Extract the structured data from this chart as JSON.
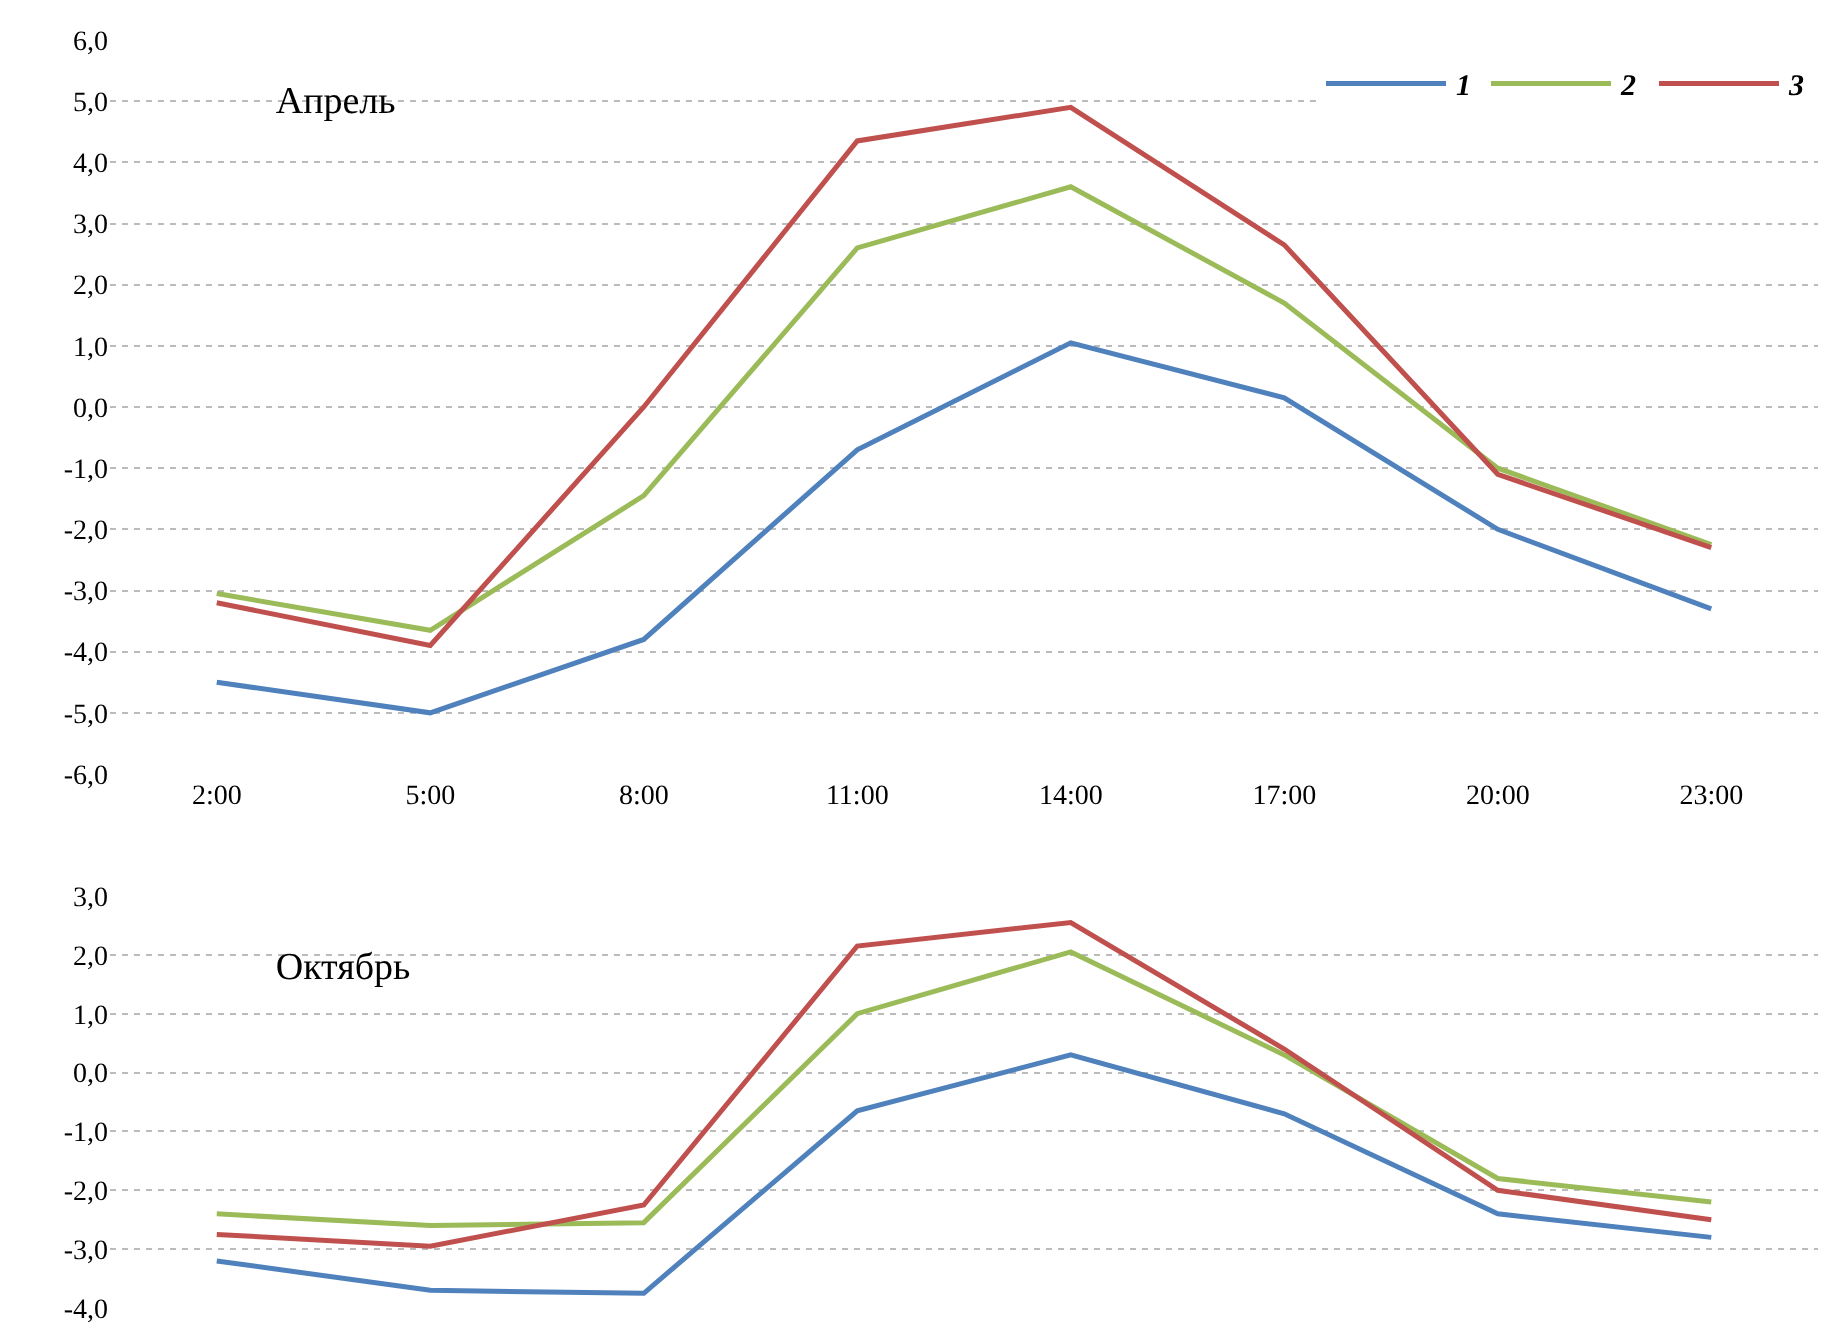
{
  "chart_data": [
    {
      "type": "line",
      "title": "Апрель",
      "categories": [
        "2:00",
        "5:00",
        "8:00",
        "11:00",
        "14:00",
        "17:00",
        "20:00",
        "23:00"
      ],
      "series": [
        {
          "name": "1",
          "color": "#4f81bd",
          "values": [
            -4.5,
            -5.0,
            -3.8,
            -0.7,
            1.05,
            0.15,
            -2.0,
            -3.3
          ]
        },
        {
          "name": "2",
          "color": "#9bbb59",
          "values": [
            -3.05,
            -3.65,
            -1.45,
            2.6,
            3.6,
            1.7,
            -1.0,
            -2.25
          ]
        },
        {
          "name": "3",
          "color": "#c0504d",
          "values": [
            -3.2,
            -3.9,
            0.0,
            4.35,
            4.9,
            2.65,
            -1.1,
            -2.3
          ]
        }
      ],
      "ylim": [
        -6,
        6
      ],
      "yticks": [
        {
          "value": -6,
          "label": "-6,0"
        },
        {
          "value": -5,
          "label": "-5,0"
        },
        {
          "value": -4,
          "label": "-4,0"
        },
        {
          "value": -3,
          "label": "-3,0"
        },
        {
          "value": -2,
          "label": "-2,0"
        },
        {
          "value": -1,
          "label": "-1,0"
        },
        {
          "value": 0,
          "label": "0,0"
        },
        {
          "value": 1,
          "label": "1,0"
        },
        {
          "value": 2,
          "label": "2,0"
        },
        {
          "value": 3,
          "label": "3,0"
        },
        {
          "value": 4,
          "label": "4,0"
        },
        {
          "value": 5,
          "label": "5,0"
        },
        {
          "value": 6,
          "label": "6,0"
        }
      ],
      "grid": "y",
      "legend": "top right",
      "line_style": "solid",
      "marker": "none"
    },
    {
      "type": "line",
      "title": "Октябрь",
      "categories": [
        null,
        null,
        null,
        null,
        null,
        null,
        null,
        null
      ],
      "series": [
        {
          "color": "#4f81bd",
          "values": [
            -3.2,
            -3.7,
            -3.75,
            -0.65,
            0.3,
            -0.7,
            -2.4,
            -2.8
          ]
        },
        {
          "color": "#9bbb59",
          "values": [
            -2.4,
            -2.6,
            -2.55,
            1.0,
            2.05,
            0.3,
            -1.8,
            -2.2
          ]
        },
        {
          "color": "#c0504d",
          "values": [
            -2.75,
            -2.95,
            -2.25,
            2.15,
            2.55,
            0.4,
            -2.0,
            -2.5
          ]
        }
      ],
      "ylim": [
        -4,
        3
      ],
      "yticks": [
        {
          "value": -4,
          "label": "-4,0"
        },
        {
          "value": -3,
          "label": "-3,0"
        },
        {
          "value": -2,
          "label": "-2,0"
        },
        {
          "value": -1,
          "label": "-1,0"
        },
        {
          "value": 0,
          "label": "0,0"
        },
        {
          "value": 1,
          "label": "1,0"
        },
        {
          "value": 2,
          "label": "2,0"
        },
        {
          "value": 3,
          "label": "3,0"
        }
      ],
      "grid": "y",
      "tick_labels": "y",
      "line_style": "solid",
      "marker": "none"
    }
  ]
}
